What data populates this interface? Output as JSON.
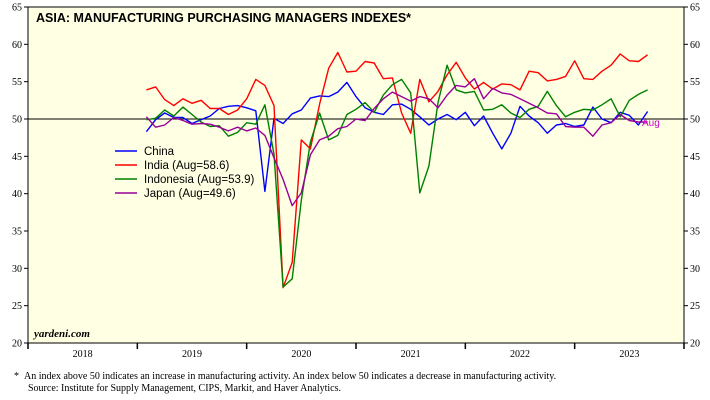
{
  "chart_data": {
    "type": "line",
    "title": "ASIA: MANUFACTURING PURCHASING MANAGERS INDEXES*",
    "xlabel": "",
    "ylabel": "",
    "ylim": [
      20,
      65
    ],
    "yticks": [
      20,
      25,
      30,
      35,
      40,
      45,
      50,
      55,
      60,
      65
    ],
    "xlim": [
      "2018-01",
      "2023-12"
    ],
    "xtick_labels": [
      "2018",
      "2019",
      "2020",
      "2021",
      "2022",
      "2023"
    ],
    "reference_line": 50,
    "grid": false,
    "legend_placement": "center-left",
    "start_month": "2019-01",
    "end_month": "2023-08",
    "series": [
      {
        "name": "China",
        "color": "#0000ff",
        "values": [
          48.3,
          49.9,
          50.8,
          50.2,
          50.2,
          49.4,
          49.9,
          50.4,
          51.4,
          51.7,
          51.8,
          51.5,
          51.1,
          40.3,
          50.1,
          49.4,
          50.7,
          51.2,
          52.8,
          53.1,
          53.0,
          53.6,
          54.9,
          53.0,
          51.5,
          50.9,
          50.6,
          51.9,
          52.0,
          51.3,
          50.3,
          49.2,
          50.0,
          50.6,
          49.9,
          50.9,
          49.1,
          50.4,
          48.1,
          46.0,
          48.1,
          51.7,
          50.4,
          49.5,
          48.1,
          49.2,
          49.4,
          49.0,
          49.2,
          51.6,
          50.0,
          49.5,
          50.9,
          50.5,
          49.2,
          51.0
        ]
      },
      {
        "name": "India (Aug=58.6)",
        "color": "#ff0000",
        "values": [
          53.9,
          54.3,
          52.6,
          51.8,
          52.7,
          52.1,
          52.5,
          51.4,
          51.4,
          50.6,
          51.2,
          52.7,
          55.3,
          54.5,
          51.8,
          27.4,
          30.8,
          47.2,
          46.0,
          52.0,
          56.8,
          58.9,
          56.3,
          56.4,
          57.7,
          57.5,
          55.4,
          55.5,
          50.8,
          48.1,
          55.3,
          52.3,
          53.7,
          55.9,
          57.6,
          55.5,
          54.0,
          54.9,
          54.0,
          54.7,
          54.6,
          53.9,
          56.4,
          56.2,
          55.1,
          55.3,
          55.7,
          57.8,
          55.4,
          55.3,
          56.4,
          57.2,
          58.7,
          57.8,
          57.7,
          58.6
        ]
      },
      {
        "name": "Indonesia (Aug=53.9)",
        "color": "#008000",
        "values": [
          49.9,
          50.1,
          51.2,
          50.4,
          51.6,
          50.6,
          49.6,
          49.0,
          49.1,
          47.7,
          48.2,
          49.5,
          49.3,
          51.9,
          45.3,
          27.5,
          28.6,
          39.1,
          46.9,
          50.8,
          47.2,
          47.8,
          50.6,
          51.3,
          52.2,
          50.9,
          53.2,
          54.6,
          55.3,
          53.5,
          40.1,
          43.7,
          52.2,
          57.2,
          53.9,
          53.5,
          53.7,
          51.2,
          51.3,
          51.9,
          50.8,
          50.2,
          51.3,
          51.7,
          53.7,
          51.8,
          50.3,
          50.9,
          51.3,
          51.2,
          51.9,
          52.7,
          50.3,
          52.5,
          53.3,
          53.9
        ]
      },
      {
        "name": "Japan (Aug=49.6)",
        "color": "#990099",
        "values": [
          50.3,
          48.9,
          49.2,
          50.2,
          49.8,
          49.3,
          49.4,
          49.3,
          48.9,
          48.4,
          48.9,
          48.4,
          48.8,
          47.8,
          44.8,
          41.9,
          38.4,
          40.1,
          45.2,
          47.2,
          47.7,
          48.7,
          49.0,
          50.0,
          49.8,
          51.4,
          52.7,
          53.6,
          53.0,
          52.4,
          53.0,
          52.7,
          51.5,
          53.2,
          54.5,
          54.3,
          55.4,
          52.7,
          54.1,
          53.5,
          53.3,
          52.7,
          52.1,
          51.5,
          50.8,
          50.7,
          49.0,
          48.9,
          48.9,
          47.7,
          49.2,
          49.5,
          50.6,
          49.8,
          49.6,
          49.6
        ]
      }
    ],
    "annotations": [
      "Aug",
      "yardeni.com"
    ]
  },
  "colors": {
    "plot_background": "#ffffe3",
    "aug_label": "#cc00cc"
  },
  "footnote": {
    "marker": "*",
    "line1": "An index above 50 indicates an increase in manufacturing activity. An index below 50 indicates a decrease in manufacturing activity.",
    "line2": "Source: Institute for Supply Management, CIPS, Markit, and Haver Analytics."
  }
}
